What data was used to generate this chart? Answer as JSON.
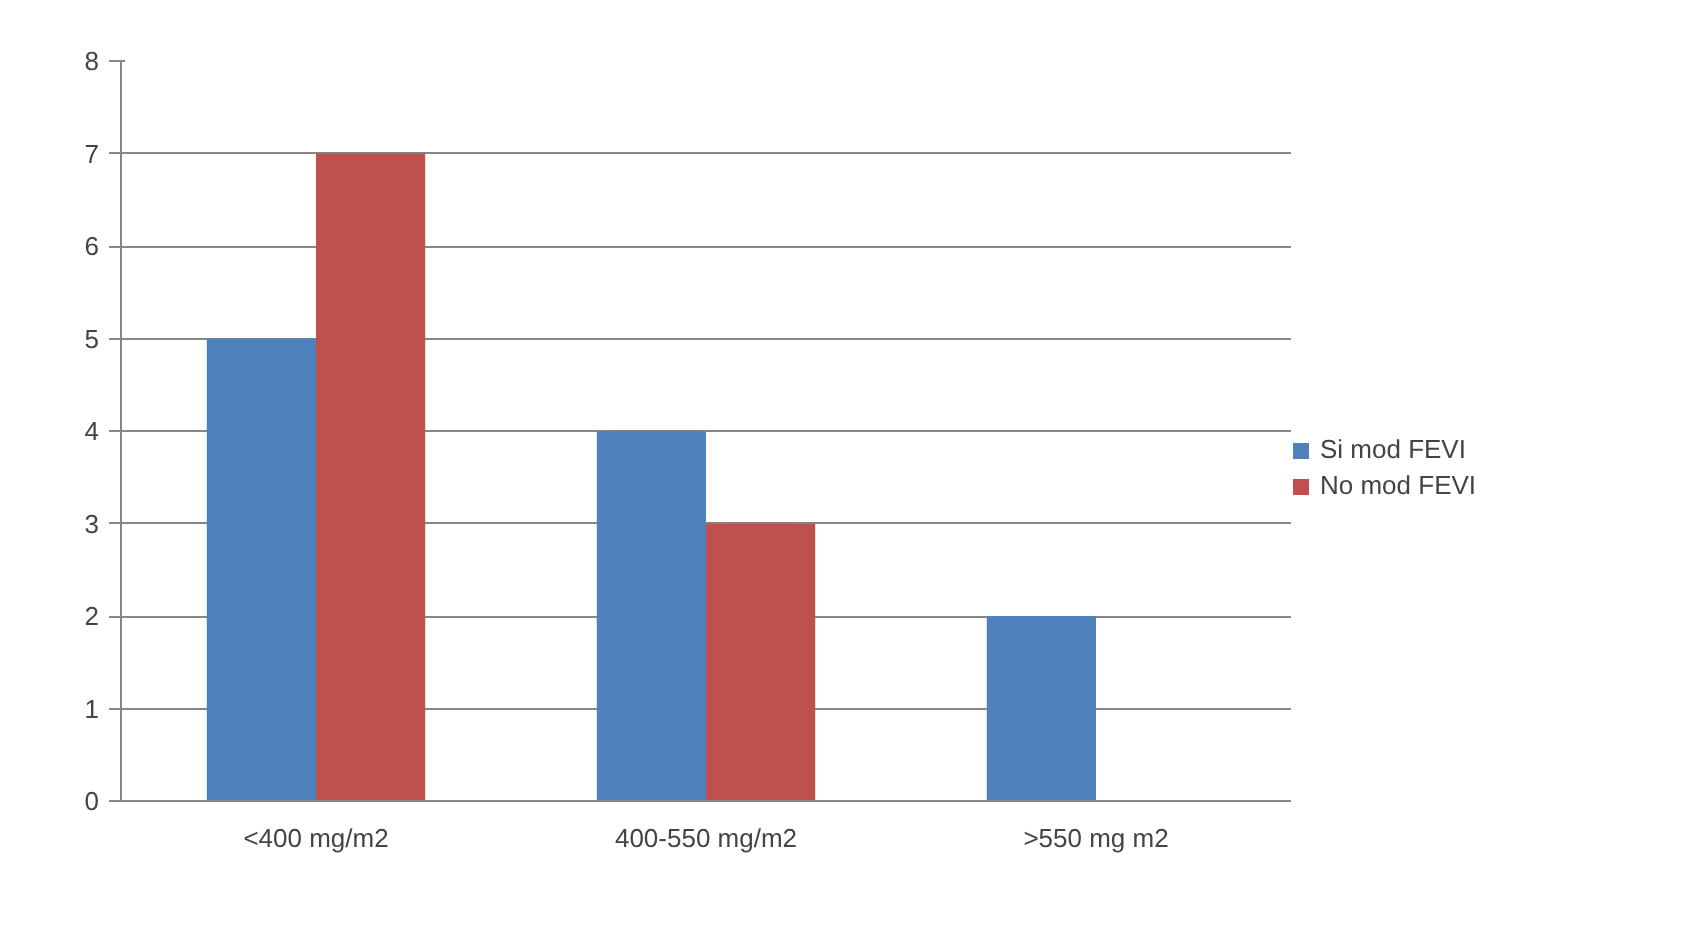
{
  "chart_data": {
    "type": "bar",
    "categories": [
      "<400 mg/m2",
      "400-550 mg/m2",
      ">550 mg m2"
    ],
    "series": [
      {
        "name": "Si mod FEVI",
        "color": "#4f81bd",
        "values": [
          5,
          4,
          2
        ]
      },
      {
        "name": "No mod FEVI",
        "color": "#c0504d",
        "values": [
          7,
          3,
          0
        ]
      }
    ],
    "ylim": [
      0,
      8
    ],
    "yticks": [
      0,
      1,
      2,
      3,
      4,
      5,
      6,
      7,
      8
    ],
    "grid": "y",
    "legend": "right"
  }
}
